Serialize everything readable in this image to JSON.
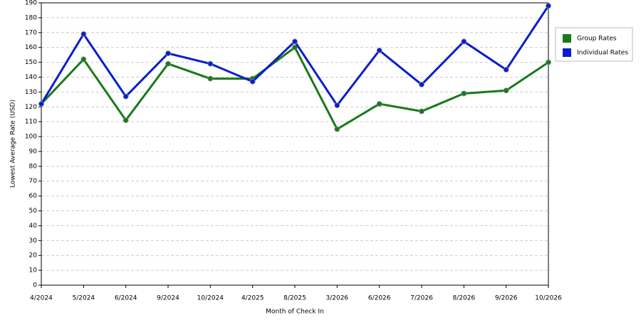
{
  "chart_data": {
    "type": "line",
    "x_label": "Month of Check In",
    "y_label": "Lowest Average Rate (USD)",
    "categories": [
      "4/2024",
      "5/2024",
      "6/2024",
      "9/2024",
      "10/2024",
      "4/2025",
      "8/2025",
      "3/2026",
      "6/2026",
      "7/2026",
      "8/2026",
      "9/2026",
      "10/2026"
    ],
    "series": [
      {
        "name": "Group Rates",
        "color": "#1a7a1a",
        "values": [
          122,
          152,
          111,
          149,
          139,
          139,
          160,
          105,
          122,
          117,
          129,
          131,
          150
        ]
      },
      {
        "name": "Individual Rates",
        "color": "#0a1ecc",
        "values": [
          122,
          169,
          127,
          156,
          149,
          137,
          164,
          121,
          158,
          135,
          164,
          145,
          188
        ]
      }
    ],
    "ylim": [
      0,
      190
    ],
    "yticks": [
      0,
      10,
      20,
      30,
      40,
      50,
      60,
      70,
      80,
      90,
      100,
      110,
      120,
      130,
      140,
      150,
      160,
      170,
      180,
      190
    ],
    "grid": true,
    "legend": "right"
  }
}
